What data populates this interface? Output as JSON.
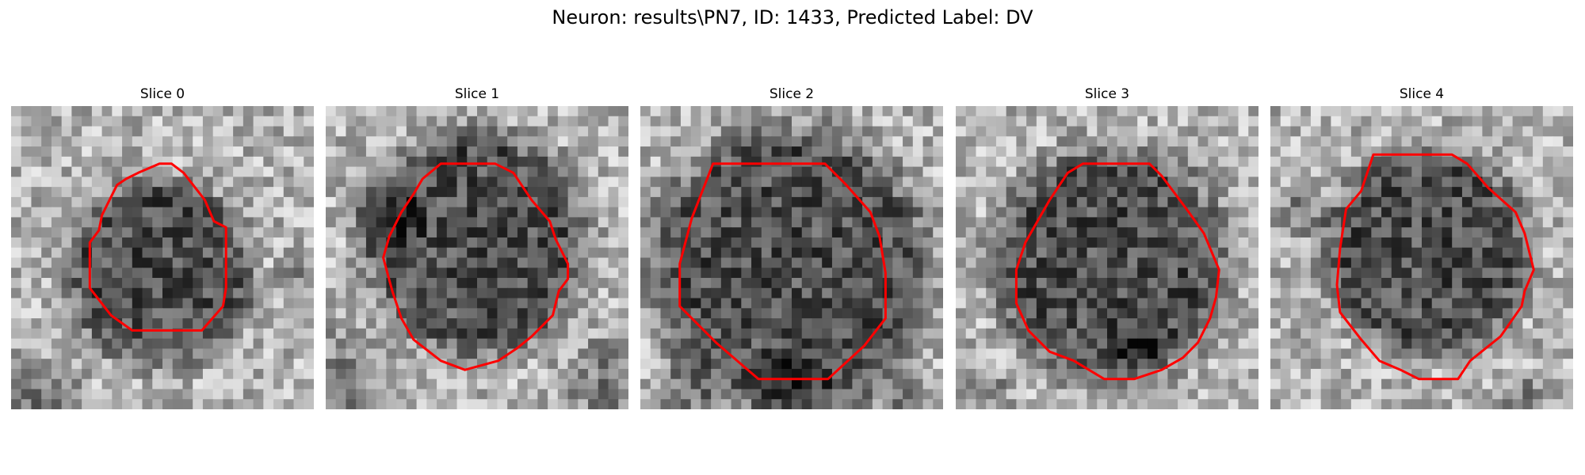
{
  "title": "Neuron: results\\PN7, ID: 1433, Predicted Label: DV",
  "colors": {
    "background": "#ffffff",
    "contour": "#ff0000",
    "image_colormap": "gray"
  },
  "slices": [
    {
      "label": "Slice 0",
      "seed": 11,
      "dark_center": [
        0.49,
        0.55
      ],
      "dark_radius": 0.3,
      "extra_dark": [
        [
          0.08,
          0.98,
          0.1
        ],
        [
          0.93,
          0.55,
          0.04
        ]
      ],
      "contour": [
        [
          0.49,
          0.19
        ],
        [
          0.53,
          0.19
        ],
        [
          0.57,
          0.22
        ],
        [
          0.64,
          0.31
        ],
        [
          0.67,
          0.38
        ],
        [
          0.71,
          0.4
        ],
        [
          0.71,
          0.5
        ],
        [
          0.71,
          0.6
        ],
        [
          0.7,
          0.66
        ],
        [
          0.63,
          0.74
        ],
        [
          0.59,
          0.74
        ],
        [
          0.51,
          0.74
        ],
        [
          0.4,
          0.74
        ],
        [
          0.33,
          0.69
        ],
        [
          0.26,
          0.6
        ],
        [
          0.26,
          0.45
        ],
        [
          0.29,
          0.41
        ],
        [
          0.3,
          0.36
        ],
        [
          0.35,
          0.26
        ],
        [
          0.38,
          0.24
        ],
        [
          0.42,
          0.22
        ]
      ]
    },
    {
      "label": "Slice 1",
      "seed": 29,
      "dark_center": [
        0.5,
        0.45
      ],
      "dark_radius": 0.36,
      "extra_dark": [
        [
          0.05,
          0.93,
          0.14
        ],
        [
          0.95,
          0.93,
          0.12
        ],
        [
          0.2,
          0.38,
          0.08
        ]
      ],
      "contour": [
        [
          0.38,
          0.19
        ],
        [
          0.56,
          0.19
        ],
        [
          0.62,
          0.22
        ],
        [
          0.68,
          0.31
        ],
        [
          0.74,
          0.38
        ],
        [
          0.76,
          0.44
        ],
        [
          0.8,
          0.52
        ],
        [
          0.8,
          0.57
        ],
        [
          0.77,
          0.61
        ],
        [
          0.75,
          0.69
        ],
        [
          0.68,
          0.76
        ],
        [
          0.63,
          0.8
        ],
        [
          0.57,
          0.84
        ],
        [
          0.46,
          0.87
        ],
        [
          0.38,
          0.84
        ],
        [
          0.29,
          0.77
        ],
        [
          0.25,
          0.7
        ],
        [
          0.22,
          0.61
        ],
        [
          0.19,
          0.5
        ],
        [
          0.21,
          0.43
        ],
        [
          0.25,
          0.35
        ],
        [
          0.29,
          0.29
        ],
        [
          0.32,
          0.24
        ]
      ]
    },
    {
      "label": "Slice 2",
      "seed": 47,
      "dark_center": [
        0.49,
        0.53
      ],
      "dark_radius": 0.45,
      "extra_dark": [
        [
          0.5,
          0.95,
          0.1
        ],
        [
          0.15,
          0.95,
          0.08
        ],
        [
          0.85,
          0.95,
          0.08
        ]
      ],
      "contour": [
        [
          0.24,
          0.19
        ],
        [
          0.61,
          0.19
        ],
        [
          0.68,
          0.26
        ],
        [
          0.76,
          0.35
        ],
        [
          0.79,
          0.43
        ],
        [
          0.81,
          0.55
        ],
        [
          0.81,
          0.7
        ],
        [
          0.74,
          0.79
        ],
        [
          0.62,
          0.9
        ],
        [
          0.48,
          0.9
        ],
        [
          0.39,
          0.9
        ],
        [
          0.25,
          0.78
        ],
        [
          0.13,
          0.66
        ],
        [
          0.13,
          0.52
        ],
        [
          0.17,
          0.37
        ]
      ]
    },
    {
      "label": "Slice 3",
      "seed": 63,
      "dark_center": [
        0.51,
        0.52
      ],
      "dark_radius": 0.38,
      "extra_dark": [
        [
          0.6,
          0.8,
          0.06
        ],
        [
          0.1,
          0.95,
          0.06
        ]
      ],
      "contour": [
        [
          0.42,
          0.19
        ],
        [
          0.64,
          0.19
        ],
        [
          0.68,
          0.23
        ],
        [
          0.74,
          0.31
        ],
        [
          0.77,
          0.35
        ],
        [
          0.82,
          0.42
        ],
        [
          0.87,
          0.54
        ],
        [
          0.86,
          0.63
        ],
        [
          0.84,
          0.7
        ],
        [
          0.8,
          0.78
        ],
        [
          0.75,
          0.83
        ],
        [
          0.68,
          0.87
        ],
        [
          0.59,
          0.9
        ],
        [
          0.49,
          0.9
        ],
        [
          0.39,
          0.84
        ],
        [
          0.31,
          0.81
        ],
        [
          0.24,
          0.74
        ],
        [
          0.2,
          0.65
        ],
        [
          0.2,
          0.54
        ],
        [
          0.23,
          0.45
        ],
        [
          0.27,
          0.38
        ],
        [
          0.31,
          0.31
        ],
        [
          0.37,
          0.22
        ]
      ]
    },
    {
      "label": "Slice 4",
      "seed": 81,
      "dark_center": [
        0.52,
        0.48
      ],
      "dark_radius": 0.33,
      "extra_dark": [
        [
          0.1,
          0.35,
          0.06
        ],
        [
          0.85,
          0.97,
          0.06
        ]
      ],
      "contour": [
        [
          0.34,
          0.16
        ],
        [
          0.6,
          0.16
        ],
        [
          0.65,
          0.19
        ],
        [
          0.72,
          0.27
        ],
        [
          0.81,
          0.35
        ],
        [
          0.84,
          0.42
        ],
        [
          0.87,
          0.54
        ],
        [
          0.84,
          0.61
        ],
        [
          0.83,
          0.66
        ],
        [
          0.76,
          0.76
        ],
        [
          0.66,
          0.84
        ],
        [
          0.62,
          0.9
        ],
        [
          0.49,
          0.9
        ],
        [
          0.43,
          0.87
        ],
        [
          0.36,
          0.84
        ],
        [
          0.3,
          0.77
        ],
        [
          0.23,
          0.68
        ],
        [
          0.22,
          0.59
        ],
        [
          0.23,
          0.47
        ],
        [
          0.25,
          0.34
        ],
        [
          0.3,
          0.28
        ],
        [
          0.32,
          0.22
        ]
      ]
    }
  ]
}
